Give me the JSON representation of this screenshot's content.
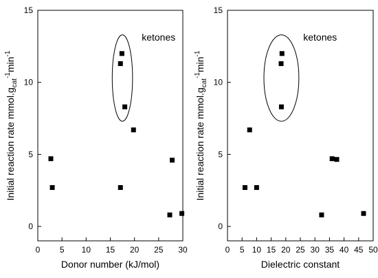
{
  "chart_data": [
    {
      "type": "scatter",
      "xlabel": "Donor number (kJ/mol)",
      "ylabel_main": "Initial reaction rate mmol.g",
      "ylabel_sub": "cat",
      "ylabel_sup": "-1",
      "ylabel_tail": "min",
      "ylabel_tail_sup": "-1",
      "xlim": [
        0,
        30
      ],
      "ylim": [
        -1,
        15
      ],
      "xticks": [
        0,
        5,
        10,
        15,
        20,
        25,
        30
      ],
      "yticks": [
        0,
        5,
        10,
        15
      ],
      "points": [
        {
          "x": 2.7,
          "y": 4.7
        },
        {
          "x": 3.0,
          "y": 2.7
        },
        {
          "x": 17.1,
          "y": 2.7
        },
        {
          "x": 17.1,
          "y": 11.3
        },
        {
          "x": 17.4,
          "y": 12.0
        },
        {
          "x": 18.0,
          "y": 8.3
        },
        {
          "x": 19.8,
          "y": 6.7
        },
        {
          "x": 27.3,
          "y": 0.8
        },
        {
          "x": 27.8,
          "y": 4.6
        },
        {
          "x": 29.8,
          "y": 0.9
        }
      ],
      "annotation": {
        "text": "ketones",
        "cx": 17.5,
        "cy": 10.3,
        "rx": 2.1,
        "ry": 3.0,
        "text_x": 21.5,
        "text_y": 12.9
      }
    },
    {
      "type": "scatter",
      "xlabel": "Dielectric constant",
      "ylabel_main": "Initial reaction rate mmol.g",
      "ylabel_sub": "cat",
      "ylabel_sup": "-1",
      "ylabel_tail": "min",
      "ylabel_tail_sup": "-1",
      "xlim": [
        0,
        50
      ],
      "ylim": [
        -1,
        15
      ],
      "xticks": [
        0,
        5,
        10,
        15,
        20,
        25,
        30,
        35,
        40,
        45,
        50
      ],
      "yticks": [
        0,
        5,
        10,
        15
      ],
      "points": [
        {
          "x": 6.0,
          "y": 2.7
        },
        {
          "x": 7.6,
          "y": 6.7
        },
        {
          "x": 10.0,
          "y": 2.7
        },
        {
          "x": 18.4,
          "y": 11.3
        },
        {
          "x": 18.5,
          "y": 8.3
        },
        {
          "x": 18.7,
          "y": 12.0
        },
        {
          "x": 32.3,
          "y": 0.8
        },
        {
          "x": 35.9,
          "y": 4.7
        },
        {
          "x": 37.5,
          "y": 4.65
        },
        {
          "x": 46.7,
          "y": 0.9
        }
      ],
      "annotation": {
        "text": "ketones",
        "cx": 18.5,
        "cy": 10.3,
        "rx": 6.0,
        "ry": 3.0,
        "text_x": 26.0,
        "text_y": 12.9
      }
    }
  ]
}
